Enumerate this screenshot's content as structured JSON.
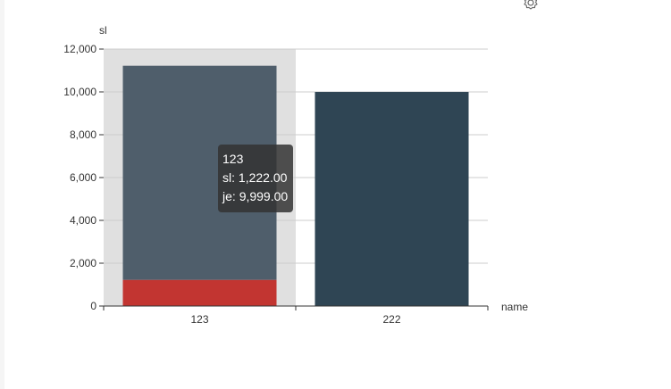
{
  "toolbox": {
    "icon": "gear-icon"
  },
  "tooltip": {
    "title": "123",
    "rows": [
      {
        "series": "sl",
        "value": "1,222.00"
      },
      {
        "series": "je",
        "value": "9,999.00"
      }
    ]
  },
  "chart_data": {
    "type": "bar",
    "stacked": true,
    "categories": [
      "123",
      "222"
    ],
    "series": [
      {
        "name": "sl",
        "values": [
          1222,
          0
        ],
        "color": "#c23531"
      },
      {
        "name": "je",
        "values": [
          9999,
          9999
        ],
        "color": "#2f4554"
      }
    ],
    "xlabel": "name",
    "ylabel": "sl",
    "ylim": [
      0,
      12000
    ],
    "yticks": [
      "0",
      "2,000",
      "4,000",
      "6,000",
      "8,000",
      "10,000",
      "12,000"
    ],
    "ytick_values": [
      0,
      2000,
      4000,
      6000,
      8000,
      10000,
      12000
    ],
    "grid": true,
    "highlighted_category": "123",
    "axis_pointer_color": "#e0e0e0",
    "gridline_color": "#cccccc",
    "axis_color": "#333333"
  }
}
